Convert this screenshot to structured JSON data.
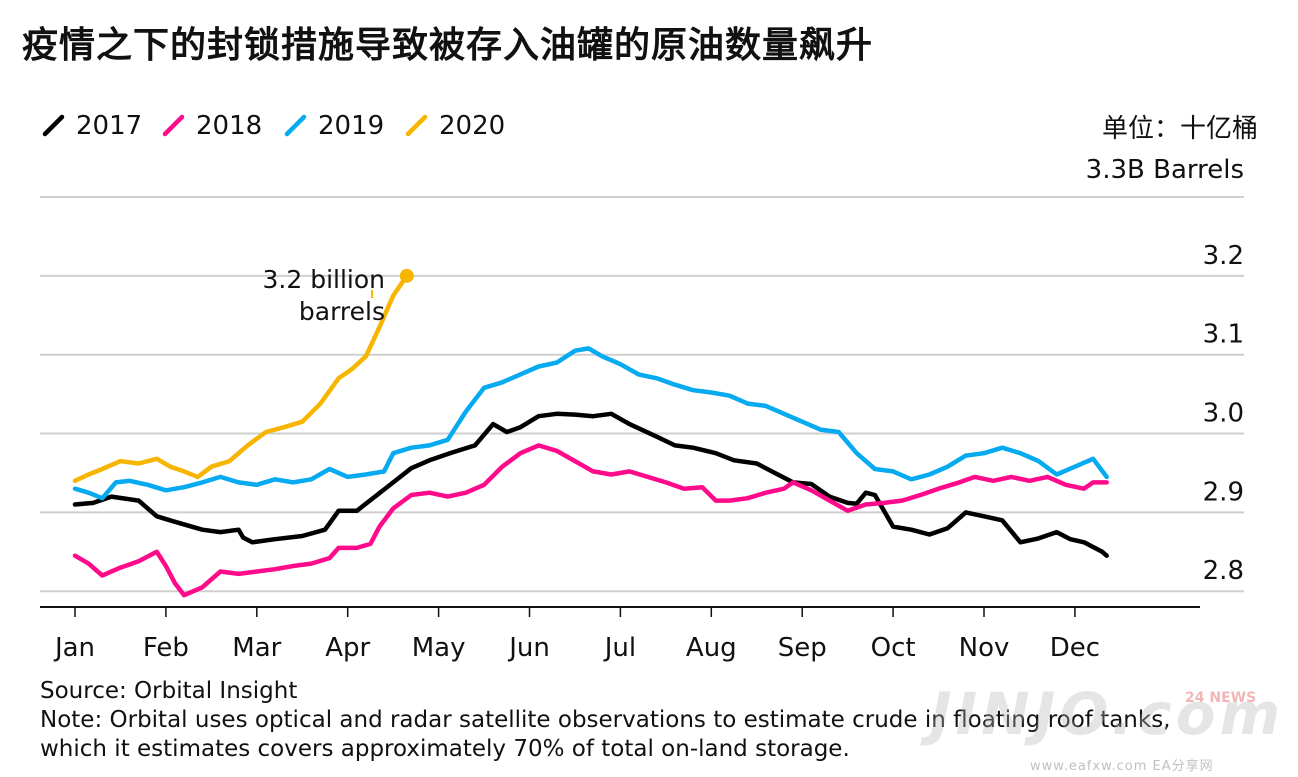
{
  "title": "疫情之下的封锁措施导致被存入油罐的原油数量飙升",
  "watermark": {
    "brand": "JINJO.com",
    "badge": "24 NEWS",
    "site": "www.eafxw.com  EA分享网"
  },
  "notes": {
    "source": "Source: Orbital Insight",
    "note_line1": "Note: Orbital uses optical and radar satellite observations to estimate crude in floating roof tanks,",
    "note_line2": "which it estimates covers approximately 70% of total on-land storage."
  },
  "chart_data": {
    "type": "line",
    "unit_cn": "单位：十亿桶",
    "unit_en": "3.3B Barrels",
    "x_categories": [
      "Jan",
      "Feb",
      "Mar",
      "Apr",
      "May",
      "Jun",
      "Jul",
      "Aug",
      "Sep",
      "Oct",
      "Nov",
      "Dec"
    ],
    "ylim": [
      2.78,
      3.3
    ],
    "y_ticks": [
      2.8,
      2.9,
      3.0,
      3.1,
      3.2
    ],
    "y_tick_labels": [
      "2.8",
      "2.9",
      "3.0",
      "3.1",
      "3.2"
    ],
    "grid": true,
    "legend_position": "top-left",
    "annotation": "3.2 billion barrels",
    "series": [
      {
        "name": "2017",
        "color": "#000000",
        "points": [
          [
            0,
            2.91
          ],
          [
            0.2,
            2.912
          ],
          [
            0.4,
            2.92
          ],
          [
            0.7,
            2.915
          ],
          [
            0.9,
            2.895
          ],
          [
            1.1,
            2.888
          ],
          [
            1.4,
            2.878
          ],
          [
            1.6,
            2.875
          ],
          [
            1.8,
            2.878
          ],
          [
            1.85,
            2.868
          ],
          [
            1.95,
            2.862
          ],
          [
            2.2,
            2.866
          ],
          [
            2.5,
            2.87
          ],
          [
            2.75,
            2.878
          ],
          [
            2.9,
            2.902
          ],
          [
            3.1,
            2.902
          ],
          [
            3.3,
            2.92
          ],
          [
            3.5,
            2.938
          ],
          [
            3.7,
            2.956
          ],
          [
            3.9,
            2.966
          ],
          [
            4.15,
            2.976
          ],
          [
            4.4,
            2.985
          ],
          [
            4.6,
            3.012
          ],
          [
            4.75,
            3.002
          ],
          [
            4.9,
            3.008
          ],
          [
            5.1,
            3.022
          ],
          [
            5.3,
            3.025
          ],
          [
            5.5,
            3.024
          ],
          [
            5.7,
            3.022
          ],
          [
            5.9,
            3.025
          ],
          [
            6.1,
            3.012
          ],
          [
            6.4,
            2.996
          ],
          [
            6.6,
            2.985
          ],
          [
            6.8,
            2.982
          ],
          [
            7.05,
            2.975
          ],
          [
            7.25,
            2.966
          ],
          [
            7.5,
            2.962
          ],
          [
            7.7,
            2.95
          ],
          [
            7.9,
            2.938
          ],
          [
            8.1,
            2.936
          ],
          [
            8.3,
            2.92
          ],
          [
            8.5,
            2.912
          ],
          [
            8.6,
            2.911
          ],
          [
            8.7,
            2.925
          ],
          [
            8.8,
            2.922
          ],
          [
            9.0,
            2.882
          ],
          [
            9.2,
            2.878
          ],
          [
            9.4,
            2.872
          ],
          [
            9.6,
            2.88
          ],
          [
            9.8,
            2.9
          ],
          [
            10.0,
            2.895
          ],
          [
            10.2,
            2.89
          ],
          [
            10.4,
            2.862
          ],
          [
            10.6,
            2.867
          ],
          [
            10.8,
            2.875
          ],
          [
            10.95,
            2.866
          ],
          [
            11.1,
            2.862
          ],
          [
            11.3,
            2.85
          ],
          [
            11.35,
            2.845
          ]
        ]
      },
      {
        "name": "2018",
        "color": "#ff0a8b",
        "points": [
          [
            0,
            2.845
          ],
          [
            0.15,
            2.835
          ],
          [
            0.3,
            2.82
          ],
          [
            0.5,
            2.83
          ],
          [
            0.7,
            2.838
          ],
          [
            0.9,
            2.85
          ],
          [
            1.0,
            2.832
          ],
          [
            1.1,
            2.81
          ],
          [
            1.2,
            2.795
          ],
          [
            1.4,
            2.805
          ],
          [
            1.6,
            2.825
          ],
          [
            1.8,
            2.822
          ],
          [
            2.0,
            2.825
          ],
          [
            2.2,
            2.828
          ],
          [
            2.4,
            2.832
          ],
          [
            2.6,
            2.835
          ],
          [
            2.8,
            2.842
          ],
          [
            2.9,
            2.855
          ],
          [
            3.1,
            2.855
          ],
          [
            3.25,
            2.86
          ],
          [
            3.35,
            2.882
          ],
          [
            3.5,
            2.905
          ],
          [
            3.7,
            2.922
          ],
          [
            3.9,
            2.925
          ],
          [
            4.1,
            2.92
          ],
          [
            4.3,
            2.925
          ],
          [
            4.5,
            2.935
          ],
          [
            4.7,
            2.958
          ],
          [
            4.9,
            2.975
          ],
          [
            5.1,
            2.985
          ],
          [
            5.3,
            2.978
          ],
          [
            5.5,
            2.965
          ],
          [
            5.7,
            2.952
          ],
          [
            5.9,
            2.948
          ],
          [
            6.1,
            2.952
          ],
          [
            6.3,
            2.945
          ],
          [
            6.5,
            2.938
          ],
          [
            6.7,
            2.93
          ],
          [
            6.9,
            2.932
          ],
          [
            7.05,
            2.915
          ],
          [
            7.2,
            2.915
          ],
          [
            7.4,
            2.918
          ],
          [
            7.6,
            2.925
          ],
          [
            7.8,
            2.93
          ],
          [
            7.9,
            2.938
          ],
          [
            8.1,
            2.928
          ],
          [
            8.3,
            2.915
          ],
          [
            8.5,
            2.902
          ],
          [
            8.7,
            2.91
          ],
          [
            8.9,
            2.912
          ],
          [
            9.1,
            2.915
          ],
          [
            9.3,
            2.922
          ],
          [
            9.5,
            2.93
          ],
          [
            9.7,
            2.937
          ],
          [
            9.9,
            2.945
          ],
          [
            10.1,
            2.94
          ],
          [
            10.3,
            2.945
          ],
          [
            10.5,
            2.94
          ],
          [
            10.7,
            2.945
          ],
          [
            10.9,
            2.935
          ],
          [
            11.1,
            2.93
          ],
          [
            11.2,
            2.938
          ],
          [
            11.35,
            2.938
          ]
        ]
      },
      {
        "name": "2019",
        "color": "#06aaf0",
        "points": [
          [
            0,
            2.93
          ],
          [
            0.15,
            2.925
          ],
          [
            0.3,
            2.918
          ],
          [
            0.45,
            2.938
          ],
          [
            0.6,
            2.94
          ],
          [
            0.8,
            2.935
          ],
          [
            1.0,
            2.928
          ],
          [
            1.2,
            2.932
          ],
          [
            1.4,
            2.938
          ],
          [
            1.6,
            2.945
          ],
          [
            1.8,
            2.938
          ],
          [
            2.0,
            2.935
          ],
          [
            2.2,
            2.942
          ],
          [
            2.4,
            2.938
          ],
          [
            2.6,
            2.942
          ],
          [
            2.8,
            2.955
          ],
          [
            3.0,
            2.945
          ],
          [
            3.2,
            2.948
          ],
          [
            3.4,
            2.952
          ],
          [
            3.5,
            2.975
          ],
          [
            3.7,
            2.982
          ],
          [
            3.9,
            2.985
          ],
          [
            4.1,
            2.992
          ],
          [
            4.3,
            3.028
          ],
          [
            4.5,
            3.058
          ],
          [
            4.7,
            3.065
          ],
          [
            4.9,
            3.075
          ],
          [
            5.1,
            3.085
          ],
          [
            5.3,
            3.09
          ],
          [
            5.5,
            3.105
          ],
          [
            5.65,
            3.108
          ],
          [
            5.8,
            3.098
          ],
          [
            6.0,
            3.088
          ],
          [
            6.2,
            3.075
          ],
          [
            6.4,
            3.07
          ],
          [
            6.6,
            3.062
          ],
          [
            6.8,
            3.055
          ],
          [
            7.0,
            3.052
          ],
          [
            7.2,
            3.048
          ],
          [
            7.4,
            3.038
          ],
          [
            7.6,
            3.035
          ],
          [
            7.8,
            3.025
          ],
          [
            8.0,
            3.015
          ],
          [
            8.2,
            3.005
          ],
          [
            8.4,
            3.002
          ],
          [
            8.6,
            2.975
          ],
          [
            8.8,
            2.955
          ],
          [
            9.0,
            2.952
          ],
          [
            9.2,
            2.942
          ],
          [
            9.4,
            2.948
          ],
          [
            9.6,
            2.958
          ],
          [
            9.8,
            2.972
          ],
          [
            10.0,
            2.975
          ],
          [
            10.2,
            2.982
          ],
          [
            10.4,
            2.975
          ],
          [
            10.6,
            2.965
          ],
          [
            10.8,
            2.948
          ],
          [
            11.0,
            2.958
          ],
          [
            11.2,
            2.968
          ],
          [
            11.35,
            2.945
          ]
        ]
      },
      {
        "name": "2020",
        "color": "#f7b500",
        "points": [
          [
            0,
            2.94
          ],
          [
            0.15,
            2.948
          ],
          [
            0.3,
            2.955
          ],
          [
            0.5,
            2.965
          ],
          [
            0.7,
            2.962
          ],
          [
            0.9,
            2.968
          ],
          [
            1.05,
            2.958
          ],
          [
            1.2,
            2.952
          ],
          [
            1.35,
            2.945
          ],
          [
            1.5,
            2.958
          ],
          [
            1.7,
            2.965
          ],
          [
            1.9,
            2.985
          ],
          [
            2.1,
            3.002
          ],
          [
            2.3,
            3.008
          ],
          [
            2.5,
            3.015
          ],
          [
            2.7,
            3.038
          ],
          [
            2.9,
            3.07
          ],
          [
            3.05,
            3.082
          ],
          [
            3.2,
            3.098
          ],
          [
            3.35,
            3.135
          ],
          [
            3.5,
            3.175
          ],
          [
            3.62,
            3.195
          ],
          [
            3.65,
            3.2
          ]
        ]
      }
    ]
  }
}
